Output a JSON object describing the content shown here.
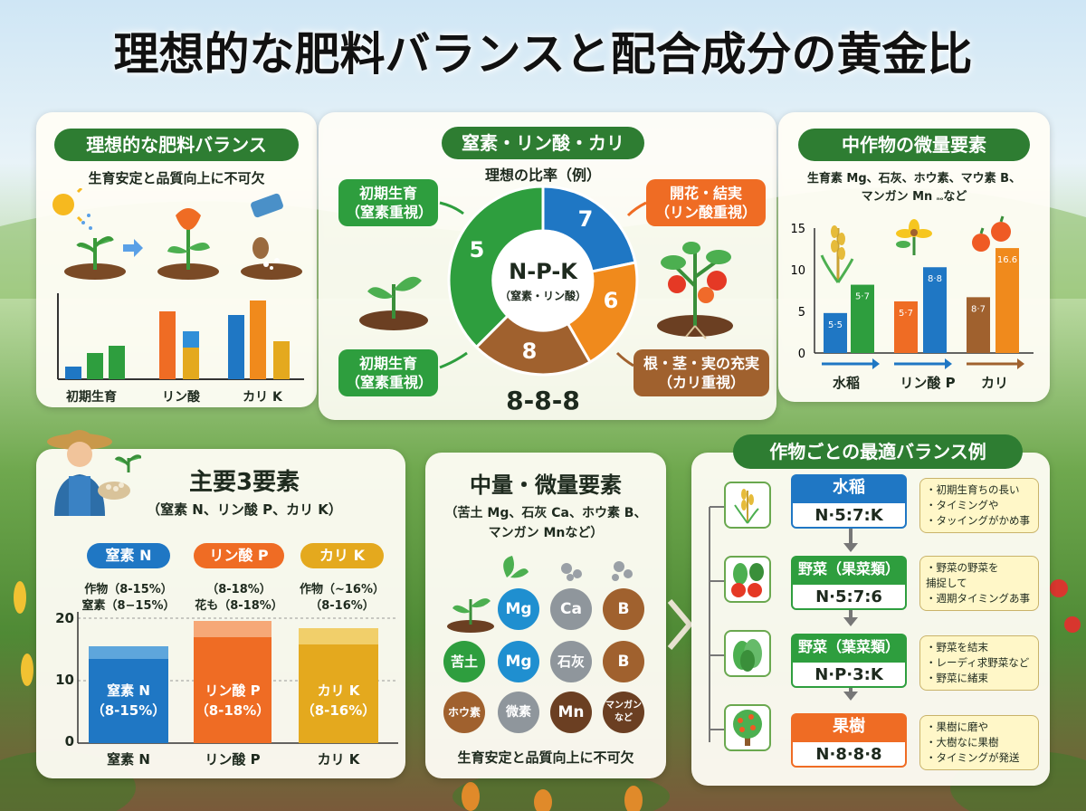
{
  "title": "理想的な肥料バランスと配合成分の黄金比",
  "left_panel": {
    "heading": "理想的な肥料バランス",
    "subtitle": "生育安定と品質向上に不可欠",
    "bar_labels": [
      "初期生育",
      "リン酸",
      "カリ K"
    ]
  },
  "center_panel": {
    "heading": "窒素・リン酸・カリ",
    "subtitle": "理想の比率（例）",
    "donut_center_main": "N-P-K",
    "donut_center_sub": "（窒素・リン酸）",
    "donut_values": [
      "5",
      "7",
      "6",
      "8"
    ],
    "ratio_label": "8-8-8",
    "callouts": {
      "top_left": [
        "初期生育",
        "（窒素重視）"
      ],
      "bottom_left": [
        "初期生育",
        "（窒素重視）"
      ],
      "top_right": [
        "開花・結実",
        "（リン酸重視）"
      ],
      "bottom_right": [
        "根・茎・実の充実",
        "（カリ重視）"
      ]
    }
  },
  "right_panel": {
    "heading": "中作物の微量要素",
    "subtitle_line1": "生育素 Mg、石灰、ホウ素、マウ素 B、",
    "subtitle_line2": "マンガン Mn",
    "subtitle_small": "ₙₒ",
    "subtitle_end": "など",
    "y_ticks": [
      "15",
      "10",
      "5",
      "0"
    ],
    "bar_value_labels": [
      "5·5",
      "5·7",
      "5·7",
      "8·8",
      "8·7",
      "16.6"
    ],
    "x_labels": [
      "水稲",
      "リン酸 P",
      "カリ"
    ]
  },
  "main3_panel": {
    "heading": "主要3要素",
    "subtitle": "（窒素 N、リン酸 P、カリ K）",
    "columns": [
      {
        "tag": "窒素 N",
        "line1": "作物（8-15%）",
        "line2": "窒素（8−15%）",
        "bar_line1": "窒素 N",
        "bar_line2": "（8-15%）",
        "xlabel": "窒素 N"
      },
      {
        "tag": "リン酸 P",
        "line1": "（8-18%）",
        "line2": "花も（8-18%）",
        "bar_line1": "リン酸 P",
        "bar_line2": "（8-18%）",
        "xlabel": "リン酸 P"
      },
      {
        "tag": "カリ K",
        "line1": "作物（~16%）",
        "line2": "（8-16%）",
        "bar_line1": "カリ K",
        "bar_line2": "（8-16%）",
        "xlabel": "カリ K"
      }
    ],
    "y_ticks": [
      "20",
      "10",
      "0"
    ]
  },
  "micro_panel": {
    "heading": "中量・微量要素",
    "subtitle_line1": "（苦土 Mg、石灰 Ca、ホウ素 B、",
    "subtitle_line2": "マンガン Mnなど）",
    "row1": [
      "Mg",
      "Ca",
      "B"
    ],
    "row2": [
      "苦土",
      "Mg",
      "石灰",
      "B"
    ],
    "row3": [
      "ホウ素",
      "微素",
      "Mn",
      "マンガン",
      "など"
    ],
    "footer": "生育安定と品質向上に不可欠"
  },
  "crops_panel": {
    "heading": "作物ごとの最適バランス例",
    "crops": [
      {
        "name": "水稲",
        "ratio": "N·5:7:K",
        "notes": [
          "・初期生育ちの長い",
          "・タイミングや",
          "・タッイングがかめ事"
        ]
      },
      {
        "name": "野菜（果菜類）",
        "ratio": "N·5:7:6",
        "notes": [
          "・野菜の野菜を",
          "  捕捉して",
          "・週期タイミングあ事"
        ]
      },
      {
        "name": "野菜（葉菜類）",
        "ratio": "N·P·3:K",
        "notes": [
          "・野菜を結末",
          "・レーディ求野菜など",
          "・野菜に緒束"
        ]
      },
      {
        "name": "果樹",
        "ratio": "N·8·8·8",
        "notes": [
          "・果樹に磨や",
          "・大樹なに果樹",
          "・タイミングが発送"
        ]
      }
    ]
  },
  "colors": {
    "green": "#2e9e3e",
    "blue": "#1f77c4",
    "orange": "#f08a1c",
    "brown": "#a0612e",
    "gold": "#e4a91e",
    "red_orange": "#ee6a1e"
  }
}
